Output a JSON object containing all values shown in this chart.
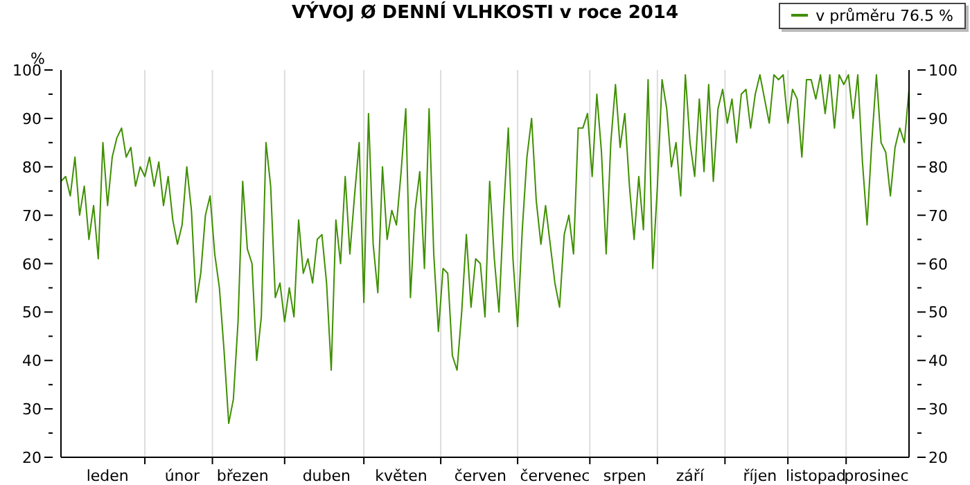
{
  "chart_data": {
    "type": "line",
    "title": "VÝVOJ Ø DENNÍ VLHKOSTI v roce 2014",
    "ylabel": "%",
    "categories": [
      null,
      null,
      null,
      null,
      null,
      null,
      null,
      null,
      null,
      null,
      "leden",
      null,
      null,
      null,
      null,
      null,
      null,
      null,
      null,
      null,
      null,
      null,
      null,
      null,
      null,
      null,
      "únor",
      null,
      null,
      null,
      null,
      null,
      null,
      null,
      null,
      null,
      null,
      null,
      null,
      "březen",
      null,
      null,
      null,
      null,
      null,
      null,
      null,
      null,
      null,
      null,
      null,
      null,
      null,
      null,
      null,
      null,
      null,
      "duben",
      null,
      null,
      null,
      null,
      null,
      null,
      null,
      null,
      null,
      null,
      null,
      null,
      null,
      null,
      null,
      "květen",
      null,
      null,
      null,
      null,
      null,
      null,
      null,
      null,
      null,
      null,
      null,
      null,
      null,
      null,
      null,
      null,
      "červen",
      null,
      null,
      null,
      null,
      null,
      null,
      null,
      null,
      null,
      null,
      null,
      null,
      null,
      null,
      null,
      "červenec",
      null,
      null,
      null,
      null,
      null,
      null,
      null,
      null,
      null,
      null,
      null,
      null,
      null,
      null,
      "srpen",
      null,
      null,
      null,
      null,
      null,
      null,
      null,
      null,
      null,
      null,
      null,
      null,
      null,
      "září",
      null,
      null,
      null,
      null,
      null,
      null,
      null,
      null,
      null,
      null,
      null,
      null,
      null,
      null,
      "říjen",
      null,
      null,
      null,
      null,
      null,
      null,
      null,
      null,
      null,
      null,
      null,
      "listopad",
      null,
      null,
      null,
      null,
      null,
      null,
      null,
      null,
      null,
      null,
      null,
      null,
      "prosinec",
      null,
      null,
      null,
      null,
      null,
      null,
      null
    ],
    "series": [
      {
        "name": "v průměru 76.5 %",
        "color": "#3f8f00",
        "values": [
          77,
          78,
          74,
          82,
          70,
          76,
          65,
          72,
          61,
          85,
          72,
          82,
          86,
          88,
          82,
          84,
          76,
          80,
          78,
          82,
          76,
          81,
          72,
          78,
          69,
          64,
          68,
          80,
          71,
          52,
          58,
          70,
          74,
          62,
          55,
          42,
          27,
          32,
          48,
          77,
          63,
          60,
          40,
          49,
          85,
          76,
          53,
          56,
          48,
          55,
          49,
          69,
          58,
          61,
          56,
          65,
          66,
          56,
          38,
          69,
          60,
          78,
          62,
          74,
          85,
          52,
          91,
          64,
          54,
          80,
          65,
          71,
          68,
          79,
          92,
          53,
          71,
          79,
          59,
          92,
          62,
          46,
          59,
          58,
          41,
          38,
          50,
          66,
          51,
          61,
          60,
          49,
          77,
          61,
          50,
          71,
          88,
          61,
          47,
          67,
          82,
          90,
          73,
          64,
          72,
          64,
          56,
          51,
          66,
          70,
          62,
          88,
          88,
          91,
          78,
          95,
          83,
          62,
          85,
          97,
          84,
          91,
          76,
          65,
          78,
          67,
          98,
          59,
          76,
          98,
          92,
          80,
          85,
          74,
          99,
          85,
          78,
          94,
          79,
          97,
          77,
          92,
          96,
          89,
          94,
          85,
          95,
          96,
          88,
          95,
          99,
          94,
          89,
          99,
          98,
          99,
          89,
          96,
          94,
          82,
          98,
          98,
          94,
          99,
          91,
          99,
          88,
          99,
          97,
          99,
          90,
          99,
          81,
          68,
          85,
          99,
          85,
          83,
          74,
          84,
          88,
          85,
          96
        ]
      }
    ],
    "ylim": [
      20,
      100
    ],
    "yticks": [
      20,
      {
        "value": 25,
        "label": null
      },
      30,
      {
        "value": 35,
        "label": null
      },
      40,
      {
        "value": 45,
        "label": null
      },
      50,
      {
        "value": 55,
        "label": null
      },
      60,
      {
        "value": 65,
        "label": null
      },
      70,
      {
        "value": 75,
        "label": null
      },
      80,
      {
        "value": 85,
        "label": null
      },
      90,
      {
        "value": 95,
        "label": null
      },
      100
    ],
    "y2lim": [
      20,
      100
    ],
    "y2ticks": [
      20,
      {
        "value": 25,
        "label": null
      },
      30,
      {
        "value": 35,
        "label": null
      },
      40,
      {
        "value": 45,
        "label": null
      },
      50,
      {
        "value": 55,
        "label": null
      },
      60,
      {
        "value": 65,
        "label": null
      },
      70,
      {
        "value": 75,
        "label": null
      },
      80,
      {
        "value": 85,
        "label": null
      },
      90,
      {
        "value": 95,
        "label": null
      },
      100
    ],
    "grid": true,
    "legend": "top right",
    "marker": "none",
    "line_style": "solid"
  }
}
